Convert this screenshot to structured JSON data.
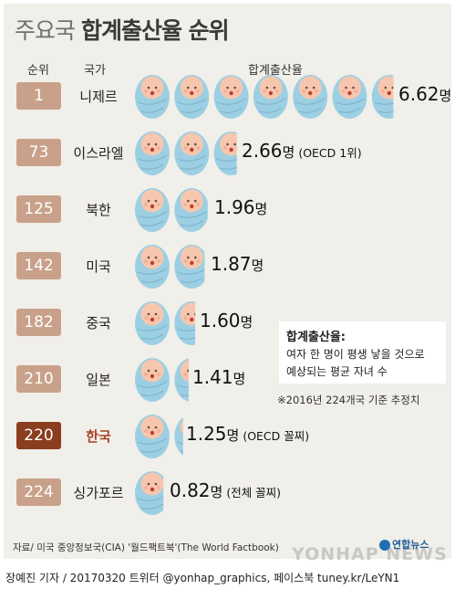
{
  "title": {
    "light": "주요국",
    "bold": "합계출산율 순위"
  },
  "headers": {
    "rank": "순위",
    "country": "국가",
    "rate": "합계출산율"
  },
  "colors": {
    "rank_box": "#c9a18a",
    "rank_box_highlight": "#8a3d1f",
    "highlight_text": "#a8412a",
    "baby_blanket": "#9ccfe3",
    "baby_face": "#f6c7ae",
    "panel": "#f1efe9"
  },
  "icon": "swaddled-baby-icon",
  "chart_data": {
    "type": "bar",
    "title": "주요국 합계출산율 순위",
    "xlabel": "",
    "ylabel": "합계출산율",
    "unit": "명",
    "rows": [
      {
        "rank": "1",
        "country": "니제르",
        "value": 6.62,
        "value_text": "6.62",
        "note": ""
      },
      {
        "rank": "73",
        "country": "이스라엘",
        "value": 2.66,
        "value_text": "2.66",
        "note": "(OECD 1위)"
      },
      {
        "rank": "125",
        "country": "북한",
        "value": 1.96,
        "value_text": "1.96",
        "note": ""
      },
      {
        "rank": "142",
        "country": "미국",
        "value": 1.87,
        "value_text": "1.87",
        "note": ""
      },
      {
        "rank": "182",
        "country": "중국",
        "value": 1.6,
        "value_text": "1.60",
        "note": ""
      },
      {
        "rank": "210",
        "country": "일본",
        "value": 1.41,
        "value_text": "1.41",
        "note": ""
      },
      {
        "rank": "220",
        "country": "한국",
        "value": 1.25,
        "value_text": "1.25",
        "note": "(OECD 꼴찌)",
        "highlight": true
      },
      {
        "rank": "224",
        "country": "싱가포르",
        "value": 0.82,
        "value_text": "0.82",
        "note": "(전체 꼴찌)"
      }
    ]
  },
  "definition": {
    "title": "합계출산율:",
    "line1": "여자 한 명이 평생 낳을 것으로",
    "line2": "예상되는 평균 자녀 수"
  },
  "footnote": "※2016년 224개국 기준 추정치",
  "source": "자료/ 미국 중앙정보국(CIA) '월드팩트북'(The World Factbook)",
  "logo": "연합뉴스",
  "watermark": "YONHAP NEWS",
  "credit": "장예진 기자 / 20170320 트위터 @yonhap_graphics, 페이스북 tuney.kr/LeYN1"
}
